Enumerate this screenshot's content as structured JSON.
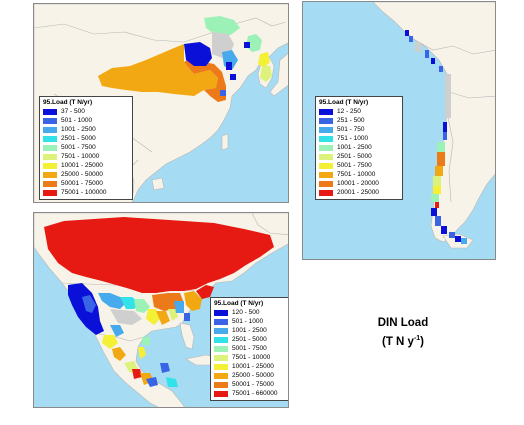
{
  "caption": {
    "line1": "DIN Load",
    "line2_open": "(T N y",
    "line2_sup": "-1",
    "line2_close": ")"
  },
  "colors": {
    "ocean": "#a6dcf3",
    "land": "#f7f3e8",
    "border": "#b6b6b6",
    "no_data": "#cfcfcf"
  },
  "panels": [
    {
      "id": "china",
      "legend": {
        "title": "95.Load (T N/yr)",
        "entries": [
          {
            "label": "37 - 500",
            "color": "#0a10d8"
          },
          {
            "label": "501 - 1000",
            "color": "#3a64e6"
          },
          {
            "label": "1001 - 2500",
            "color": "#46aaec"
          },
          {
            "label": "2501 - 5000",
            "color": "#32e2e8"
          },
          {
            "label": "5001 - 7500",
            "color": "#9cf2b6"
          },
          {
            "label": "7501 - 10000",
            "color": "#dcf27a"
          },
          {
            "label": "10001 - 25000",
            "color": "#f4f036"
          },
          {
            "label": "25000 - 50000",
            "color": "#f2a812"
          },
          {
            "label": "50001 - 75000",
            "color": "#ec7a18"
          },
          {
            "label": "75001 - 100000",
            "color": "#e61a12"
          }
        ]
      }
    },
    {
      "id": "chile",
      "legend": {
        "title": "95.Load (T N/yr)",
        "entries": [
          {
            "label": "12 - 250",
            "color": "#0a10d8"
          },
          {
            "label": "251 - 500",
            "color": "#3a64e6"
          },
          {
            "label": "501 - 750",
            "color": "#46aaec"
          },
          {
            "label": "751 - 1000",
            "color": "#32e2e8"
          },
          {
            "label": "1001 - 2500",
            "color": "#9cf2b6"
          },
          {
            "label": "2501 - 5000",
            "color": "#dcf27a"
          },
          {
            "label": "5001 - 7500",
            "color": "#f4f036"
          },
          {
            "label": "7501 - 10000",
            "color": "#f2a812"
          },
          {
            "label": "10001 - 20000",
            "color": "#ec7a18"
          },
          {
            "label": "20001 - 25000",
            "color": "#e61a12"
          }
        ]
      }
    },
    {
      "id": "north_america",
      "legend": {
        "title": "95.Load (T N/yr)",
        "entries": [
          {
            "label": "120 - 500",
            "color": "#0a10d8"
          },
          {
            "label": "501 - 1000",
            "color": "#3a64e6"
          },
          {
            "label": "1001 - 2500",
            "color": "#46aaec"
          },
          {
            "label": "2501 - 5000",
            "color": "#32e2e8"
          },
          {
            "label": "5001 - 7500",
            "color": "#9cf2b6"
          },
          {
            "label": "7501 - 10000",
            "color": "#dcf27a"
          },
          {
            "label": "10001 - 25000",
            "color": "#f4f036"
          },
          {
            "label": "25000 - 50000",
            "color": "#f2a812"
          },
          {
            "label": "50001 - 75000",
            "color": "#ec7a18"
          },
          {
            "label": "75001 - 660000",
            "color": "#e61a12"
          }
        ]
      }
    }
  ]
}
